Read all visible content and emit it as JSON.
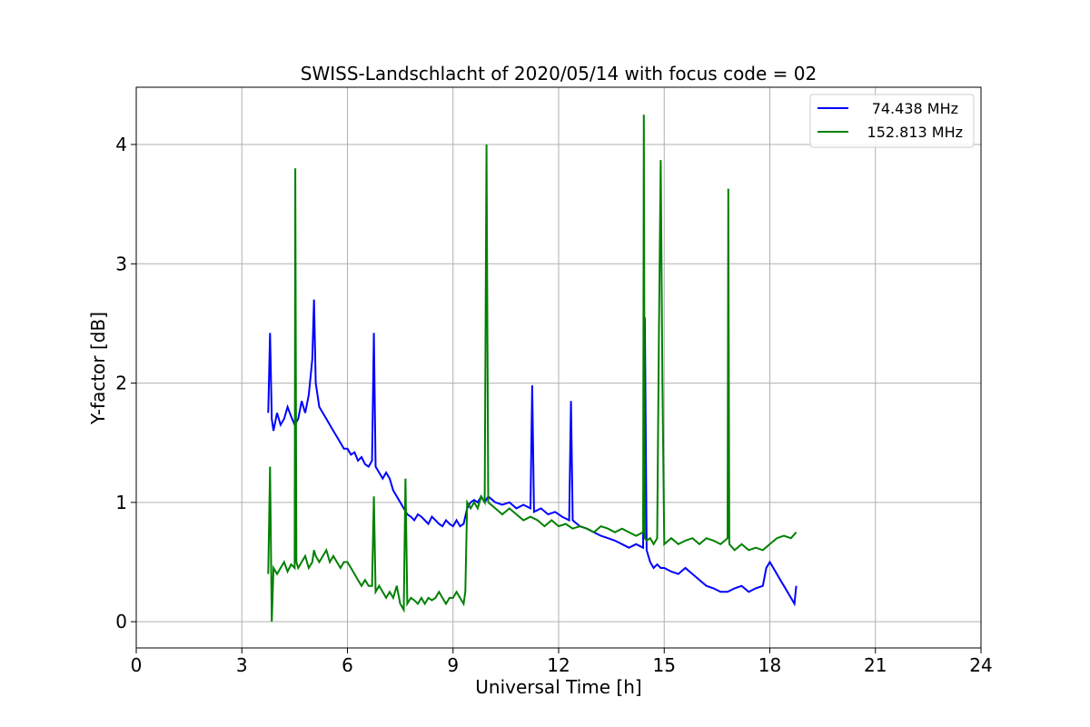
{
  "chart_data": {
    "type": "line",
    "title": "SWISS-Landschlacht of 2020/05/14 with focus code = 02",
    "xlabel": "Universal Time [h]",
    "ylabel": "Y-factor [dB]",
    "xlim": [
      0,
      24
    ],
    "ylim": [
      -0.22,
      4.48
    ],
    "xticks": [
      0,
      3,
      6,
      9,
      12,
      15,
      18,
      21,
      24
    ],
    "yticks": [
      0,
      1,
      2,
      3,
      4
    ],
    "grid": true,
    "legend": "top-right",
    "series": [
      {
        "name": "74.438 MHz",
        "color": "#0000ff",
        "x": [
          3.75,
          3.8,
          3.85,
          3.9,
          4.0,
          4.1,
          4.2,
          4.3,
          4.4,
          4.5,
          4.6,
          4.7,
          4.8,
          4.9,
          5.0,
          5.05,
          5.1,
          5.2,
          5.3,
          5.4,
          5.5,
          5.6,
          5.7,
          5.8,
          5.9,
          6.0,
          6.1,
          6.2,
          6.3,
          6.4,
          6.5,
          6.6,
          6.7,
          6.75,
          6.8,
          6.9,
          7.0,
          7.1,
          7.2,
          7.3,
          7.4,
          7.5,
          7.6,
          7.7,
          7.8,
          7.9,
          8.0,
          8.1,
          8.2,
          8.3,
          8.4,
          8.5,
          8.6,
          8.7,
          8.8,
          8.9,
          9.0,
          9.1,
          9.2,
          9.3,
          9.4,
          9.5,
          9.6,
          9.7,
          9.8,
          9.9,
          10.0,
          10.2,
          10.4,
          10.6,
          10.8,
          11.0,
          11.2,
          11.25,
          11.3,
          11.5,
          11.7,
          11.9,
          12.1,
          12.3,
          12.35,
          12.4,
          12.6,
          12.8,
          13.0,
          13.2,
          13.4,
          13.6,
          13.8,
          14.0,
          14.2,
          14.4,
          14.45,
          14.5,
          14.6,
          14.7,
          14.8,
          14.9,
          15.0,
          15.2,
          15.4,
          15.6,
          15.8,
          16.0,
          16.2,
          16.4,
          16.6,
          16.8,
          17.0,
          17.2,
          17.4,
          17.6,
          17.8,
          17.9,
          18.0,
          18.1,
          18.2,
          18.3,
          18.4,
          18.5,
          18.6,
          18.7,
          18.75
        ],
        "y": [
          1.75,
          2.42,
          1.7,
          1.6,
          1.75,
          1.65,
          1.7,
          1.8,
          1.72,
          1.65,
          1.7,
          1.85,
          1.75,
          1.9,
          2.2,
          2.7,
          2.0,
          1.8,
          1.75,
          1.7,
          1.65,
          1.6,
          1.55,
          1.5,
          1.45,
          1.45,
          1.4,
          1.42,
          1.35,
          1.38,
          1.32,
          1.3,
          1.35,
          2.42,
          1.3,
          1.25,
          1.2,
          1.25,
          1.2,
          1.1,
          1.05,
          1.0,
          0.95,
          0.9,
          0.88,
          0.85,
          0.9,
          0.88,
          0.85,
          0.82,
          0.88,
          0.85,
          0.82,
          0.8,
          0.85,
          0.82,
          0.8,
          0.85,
          0.8,
          0.82,
          0.95,
          1.0,
          1.02,
          1.0,
          1.05,
          1.0,
          1.05,
          1.0,
          0.98,
          1.0,
          0.95,
          0.98,
          0.95,
          1.98,
          0.92,
          0.95,
          0.9,
          0.92,
          0.88,
          0.85,
          1.85,
          0.85,
          0.8,
          0.78,
          0.75,
          0.72,
          0.7,
          0.68,
          0.65,
          0.62,
          0.65,
          0.62,
          2.55,
          0.6,
          0.5,
          0.45,
          0.48,
          0.45,
          0.45,
          0.42,
          0.4,
          0.45,
          0.4,
          0.35,
          0.3,
          0.28,
          0.25,
          0.25,
          0.28,
          0.3,
          0.25,
          0.28,
          0.3,
          0.45,
          0.5,
          0.45,
          0.4,
          0.35,
          0.3,
          0.25,
          0.2,
          0.15,
          0.3
        ]
      },
      {
        "name": "152.813 MHz",
        "color": "#008000",
        "x": [
          3.75,
          3.8,
          3.85,
          3.9,
          4.0,
          4.1,
          4.2,
          4.3,
          4.4,
          4.5,
          4.52,
          4.55,
          4.6,
          4.7,
          4.8,
          4.9,
          5.0,
          5.05,
          5.1,
          5.2,
          5.3,
          5.4,
          5.5,
          5.6,
          5.7,
          5.8,
          5.9,
          6.0,
          6.1,
          6.2,
          6.3,
          6.4,
          6.5,
          6.6,
          6.7,
          6.75,
          6.8,
          6.9,
          7.0,
          7.1,
          7.2,
          7.3,
          7.4,
          7.5,
          7.6,
          7.65,
          7.7,
          7.8,
          7.9,
          8.0,
          8.1,
          8.2,
          8.3,
          8.4,
          8.5,
          8.6,
          8.7,
          8.8,
          8.9,
          9.0,
          9.1,
          9.2,
          9.3,
          9.35,
          9.4,
          9.5,
          9.6,
          9.7,
          9.8,
          9.9,
          9.95,
          10.0,
          10.2,
          10.4,
          10.6,
          10.8,
          11.0,
          11.2,
          11.4,
          11.6,
          11.8,
          12.0,
          12.2,
          12.4,
          12.6,
          12.8,
          13.0,
          13.2,
          13.4,
          13.6,
          13.8,
          14.0,
          14.2,
          14.4,
          14.42,
          14.45,
          14.5,
          14.6,
          14.7,
          14.8,
          14.85,
          14.9,
          14.95,
          15.0,
          15.2,
          15.4,
          15.6,
          15.8,
          16.0,
          16.2,
          16.4,
          16.6,
          16.8,
          16.82,
          16.85,
          17.0,
          17.2,
          17.4,
          17.6,
          17.8,
          18.0,
          18.2,
          18.4,
          18.6,
          18.75
        ],
        "y": [
          0.4,
          1.3,
          0.0,
          0.45,
          0.4,
          0.45,
          0.5,
          0.42,
          0.48,
          0.45,
          3.8,
          0.5,
          0.45,
          0.5,
          0.55,
          0.45,
          0.5,
          0.6,
          0.55,
          0.5,
          0.55,
          0.6,
          0.5,
          0.55,
          0.5,
          0.45,
          0.5,
          0.5,
          0.45,
          0.4,
          0.35,
          0.3,
          0.35,
          0.3,
          0.3,
          1.05,
          0.25,
          0.3,
          0.25,
          0.2,
          0.25,
          0.2,
          0.3,
          0.15,
          0.1,
          1.2,
          0.15,
          0.2,
          0.18,
          0.15,
          0.2,
          0.15,
          0.2,
          0.18,
          0.2,
          0.25,
          0.2,
          0.15,
          0.2,
          0.2,
          0.25,
          0.2,
          0.15,
          0.25,
          1.0,
          0.95,
          1.0,
          0.95,
          1.05,
          1.0,
          4.0,
          1.0,
          0.95,
          0.9,
          0.95,
          0.9,
          0.85,
          0.88,
          0.85,
          0.8,
          0.85,
          0.8,
          0.82,
          0.78,
          0.8,
          0.78,
          0.75,
          0.8,
          0.78,
          0.75,
          0.78,
          0.75,
          0.72,
          0.75,
          4.25,
          0.7,
          0.68,
          0.7,
          0.65,
          0.7,
          2.4,
          3.87,
          2.0,
          0.65,
          0.7,
          0.65,
          0.68,
          0.7,
          0.65,
          0.7,
          0.68,
          0.65,
          0.7,
          3.63,
          0.65,
          0.6,
          0.65,
          0.6,
          0.62,
          0.6,
          0.65,
          0.7,
          0.72,
          0.7,
          0.75
        ]
      }
    ]
  }
}
